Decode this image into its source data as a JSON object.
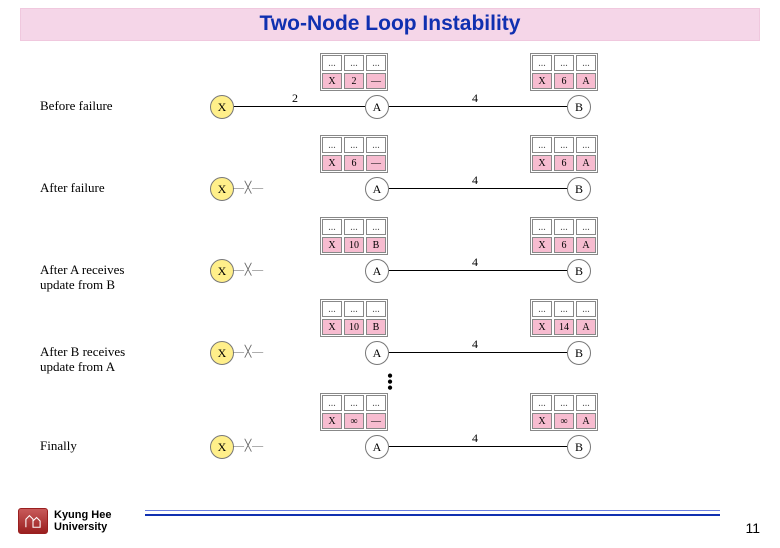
{
  "title": "Two-Node Loop Instability",
  "colors": {
    "title_text": "#1030b0",
    "title_bg": "#f5d6e8",
    "node_x_fill": "#ffef8a",
    "table_row_fill": "#f7bcd0",
    "rule_top": "#6a7fe0",
    "rule_bottom": "#1030b0",
    "logo_bg": "#9a1f1f"
  },
  "link_weight_xa": "2",
  "link_weight_ab": "4",
  "nodes": {
    "x": "X",
    "a": "A",
    "b": "B"
  },
  "table_header": [
    "...",
    "...",
    "..."
  ],
  "rows": [
    {
      "caption": "Before failure",
      "table_a": [
        "X",
        "2",
        "—"
      ],
      "table_b": [
        "X",
        "6",
        "A"
      ],
      "link_xa_intact": true
    },
    {
      "caption": "After failure",
      "table_a": [
        "X",
        "6",
        "—"
      ],
      "table_b": [
        "X",
        "6",
        "A"
      ],
      "link_xa_intact": false
    },
    {
      "caption": "After A receives update from B",
      "table_a": [
        "X",
        "10",
        "B"
      ],
      "table_b": [
        "X",
        "6",
        "A"
      ],
      "link_xa_intact": false
    },
    {
      "caption": "After B receives update from A",
      "table_a": [
        "X",
        "10",
        "B"
      ],
      "table_b": [
        "X",
        "14",
        "A"
      ],
      "link_xa_intact": false
    },
    {
      "caption": "Finally",
      "table_a": [
        "X",
        "∞",
        "—"
      ],
      "table_b": [
        "X",
        "∞",
        "A"
      ],
      "link_xa_intact": false
    }
  ],
  "footer": {
    "affiliation_line1": "Kyung Hee",
    "affiliation_line2": "University",
    "page": "11"
  }
}
